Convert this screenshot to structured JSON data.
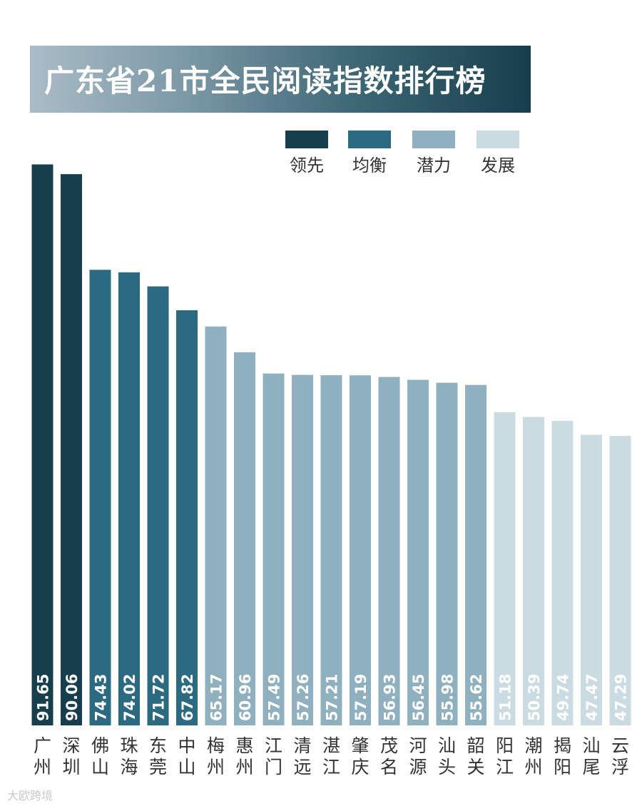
{
  "title": "广东省21市全民阅读指数排行榜",
  "watermark": "大欧跨境",
  "colors": {
    "领先": "#163e4c",
    "均衡": "#2b6a80",
    "潜力": "#8fb0be",
    "发展": "#cbdbe2"
  },
  "chart_data": {
    "type": "bar",
    "title": "广东省21市全民阅读指数排行榜",
    "xlabel": "",
    "ylabel": "",
    "ylim": [
      0,
      100
    ],
    "grid": false,
    "legend": {
      "placement": "top-right",
      "entries": [
        "领先",
        "均衡",
        "潜力",
        "发展"
      ]
    },
    "categories": [
      "广州",
      "深圳",
      "佛山",
      "珠海",
      "东莞",
      "中山",
      "梅州",
      "惠州",
      "江门",
      "清远",
      "湛江",
      "肇庆",
      "茂名",
      "河源",
      "汕头",
      "韶关",
      "阳江",
      "潮州",
      "揭阳",
      "汕尾",
      "云浮"
    ],
    "values": [
      91.65,
      90.06,
      74.43,
      74.02,
      71.72,
      67.82,
      65.17,
      60.96,
      57.49,
      57.26,
      57.21,
      57.19,
      56.93,
      56.45,
      55.98,
      55.62,
      51.18,
      50.39,
      49.74,
      47.47,
      47.29
    ],
    "value_labels": [
      "91.65",
      "90.06",
      "74.43",
      "74.02",
      "71.72",
      "67.82",
      "65.17",
      "60.96",
      "57.49",
      "57.26",
      "57.21",
      "57.19",
      "56.93",
      "56.45",
      "55.98",
      "55.62",
      "51.18",
      "50.39",
      "49.74",
      "47.47",
      "47.29"
    ],
    "groups": [
      "领先",
      "领先",
      "均衡",
      "均衡",
      "均衡",
      "均衡",
      "潜力",
      "潜力",
      "潜力",
      "潜力",
      "潜力",
      "潜力",
      "潜力",
      "潜力",
      "潜力",
      "潜力",
      "发展",
      "发展",
      "发展",
      "发展",
      "发展"
    ]
  }
}
